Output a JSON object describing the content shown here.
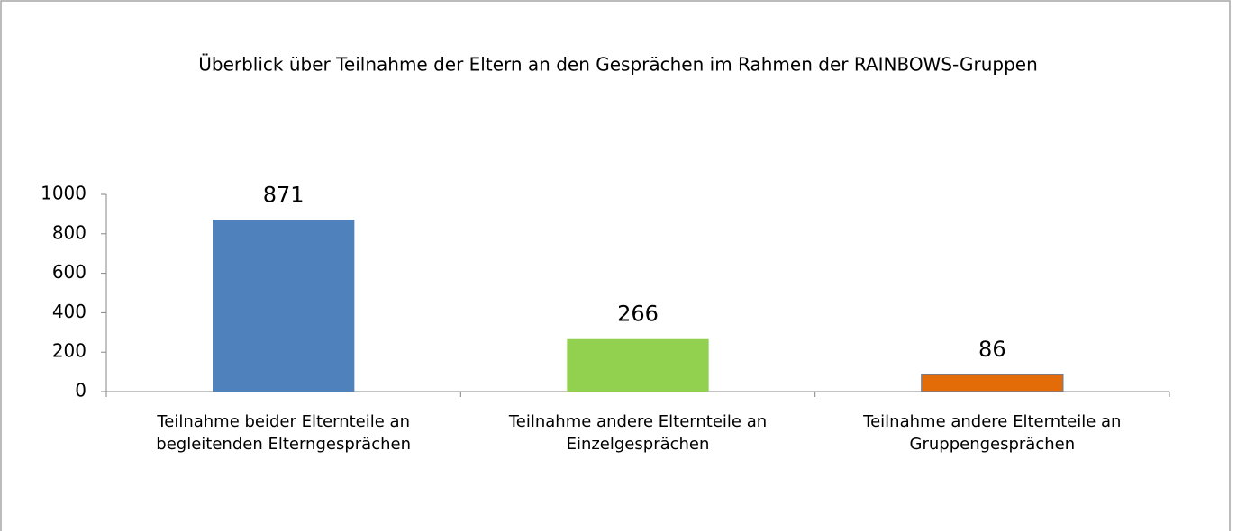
{
  "chart_data": {
    "type": "bar",
    "title": "Überblick über Teilnahme der Eltern an den Gesprächen im Rahmen der RAINBOWS-Gruppen",
    "categories": [
      "Teilnahme beider Elternteile an begleitenden Elterngesprächen",
      "Teilnahme andere Elternteile an Einzelgesprächen",
      "Teilnahme andere Elternteile an Gruppengesprächen"
    ],
    "values": [
      871,
      266,
      86
    ],
    "colors": [
      "#4f81bd",
      "#92d050",
      "#e36c09"
    ],
    "ylim": [
      0,
      1000
    ],
    "yticks": [
      0,
      200,
      400,
      600,
      800,
      1000
    ],
    "grid": false
  }
}
